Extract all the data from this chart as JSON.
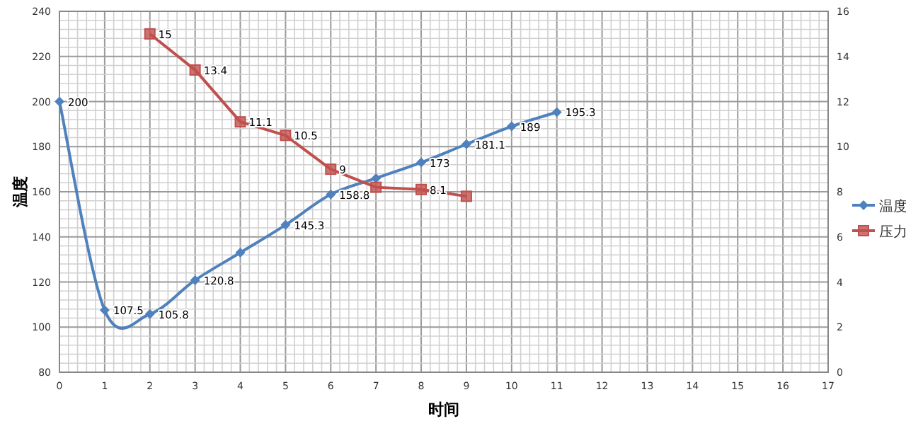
{
  "chart_data": {
    "type": "line",
    "xlabel": "时间",
    "ylabel": "温度",
    "xlim": [
      0,
      17
    ],
    "xticks": [
      0,
      1,
      2,
      3,
      4,
      5,
      6,
      7,
      8,
      9,
      10,
      11,
      12,
      13,
      14,
      15,
      16,
      17
    ],
    "ylim": [
      80,
      240
    ],
    "yticks": [
      80,
      100,
      120,
      140,
      160,
      180,
      200,
      220,
      240
    ],
    "y2lim": [
      0,
      16
    ],
    "y2ticks": [
      0,
      2,
      4,
      6,
      8,
      10,
      12,
      14,
      16
    ],
    "grid": true,
    "legend": "right",
    "series": [
      {
        "name": "温度",
        "color": "#4f81bd",
        "marker": "diamond",
        "x": [
          0,
          1,
          2,
          3,
          4,
          5,
          6,
          7,
          8,
          9,
          10,
          11
        ],
        "values": [
          200,
          107.5,
          105.8,
          120.8,
          133,
          145.3,
          158.8,
          166,
          173,
          181.1,
          189,
          195.3
        ],
        "value_labels": [
          "200",
          "107.5",
          "105.8",
          "120.8",
          null,
          "145.3",
          "158.8",
          null,
          "173",
          "181.1",
          "189",
          "195.3"
        ]
      },
      {
        "name": "压力",
        "color": "#c0504d",
        "marker": "square",
        "axis": "y2",
        "x": [
          2,
          3,
          4,
          5,
          6,
          7,
          8,
          9
        ],
        "values": [
          15,
          13.4,
          11.1,
          10.5,
          9,
          8.2,
          8.1,
          7.8
        ],
        "value_labels": [
          "15",
          "13.4",
          "11.1",
          "10.5",
          "9",
          null,
          "8.1",
          null
        ]
      }
    ]
  }
}
